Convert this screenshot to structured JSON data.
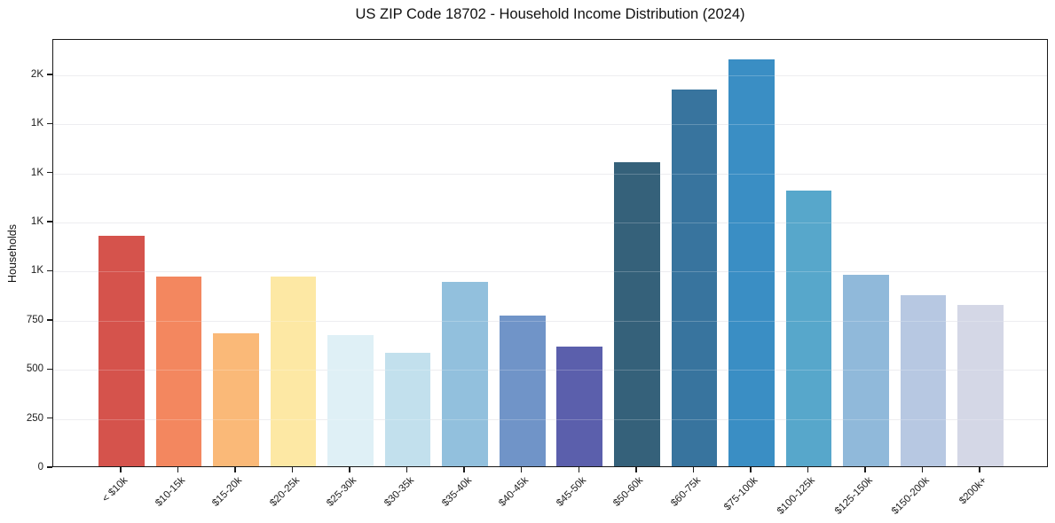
{
  "chart_data": {
    "type": "bar",
    "title": "US ZIP Code 18702 - Household Income Distribution (2024)",
    "xlabel": "",
    "ylabel": "Households",
    "categories": [
      "< $10k",
      "$10-15k",
      "$15-20k",
      "$20-25k",
      "$25-30k",
      "$30-35k",
      "$35-40k",
      "$40-45k",
      "$45-50k",
      "$50-60k",
      "$60-75k",
      "$75-100k",
      "$100-125k",
      "$125-150k",
      "$150-200k",
      "$200k+"
    ],
    "values": [
      1173,
      965,
      677,
      966,
      668,
      578,
      937,
      766,
      611,
      1547,
      1919,
      2070,
      1405,
      973,
      872,
      823
    ],
    "bar_colors": [
      "#d5534c",
      "#f3875f",
      "#fab978",
      "#fde8a4",
      "#dff0f6",
      "#c2e0ed",
      "#92c0dd",
      "#7094c8",
      "#5b5fac",
      "#35617a",
      "#38749e",
      "#3a8ec4",
      "#57a7cb",
      "#90b9da",
      "#b7c8e2",
      "#d4d7e6"
    ],
    "ylim": [
      0,
      2180
    ],
    "yticks": [
      {
        "value": 0,
        "label": "0"
      },
      {
        "value": 250,
        "label": "250"
      },
      {
        "value": 500,
        "label": "500"
      },
      {
        "value": 750,
        "label": "750"
      },
      {
        "value": 1000,
        "label": "1K"
      },
      {
        "value": 1250,
        "label": "1K"
      },
      {
        "value": 1500,
        "label": "1K"
      },
      {
        "value": 1750,
        "label": "1K"
      },
      {
        "value": 2000,
        "label": "2K"
      }
    ],
    "grid": "horizontal-only",
    "legend": "none",
    "x_tick_rotation_deg": 45,
    "bar_width_units": 0.8,
    "x_padding_units": 0.69
  },
  "colors": {
    "background": "#ffffff",
    "spine": "#1a1a1a",
    "gridline": "#e8e8ec",
    "text": "#111111"
  }
}
